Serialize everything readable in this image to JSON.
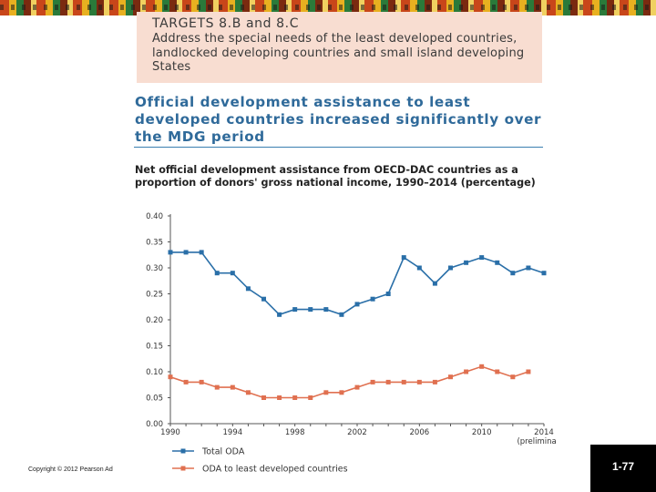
{
  "target": {
    "title": "TARGETS 8.B and 8.C",
    "text": "Address the special needs of the least developed countries, landlocked developing countries and small island developing States"
  },
  "headline": "Official development assistance to least developed countries increased significantly over the MDG period",
  "footer": {
    "copyright": "Copyright © 2012 Pearson Ad",
    "page_number": "1-77"
  },
  "chart_data": {
    "type": "line",
    "title": "Net official development assistance from OECD-DAC countries as a proportion of donors' gross national income, 1990–2014 (percentage)",
    "x": [
      1990,
      1991,
      1992,
      1993,
      1994,
      1995,
      1996,
      1997,
      1998,
      1999,
      2000,
      2001,
      2002,
      2003,
      2004,
      2005,
      2006,
      2007,
      2008,
      2009,
      2010,
      2011,
      2012,
      2013,
      2014
    ],
    "x_ticks": [
      1990,
      1994,
      1998,
      2002,
      2006,
      2010,
      2014
    ],
    "x_tick_note": "(preliminary)",
    "ylim": [
      0,
      0.4
    ],
    "y_ticks": [
      "0.00",
      "0.05",
      "0.10",
      "0.15",
      "0.20",
      "0.25",
      "0.30",
      "0.35",
      "0.40"
    ],
    "series": [
      {
        "name": "Total ODA",
        "color": "#2a6fa8",
        "values": [
          0.33,
          0.33,
          0.33,
          0.29,
          0.29,
          0.26,
          0.24,
          0.21,
          0.22,
          0.22,
          0.22,
          0.21,
          0.23,
          0.24,
          0.25,
          0.32,
          0.3,
          0.27,
          0.3,
          0.31,
          0.32,
          0.31,
          0.29,
          0.3,
          0.29
        ]
      },
      {
        "name": "ODA to least developed countries",
        "color": "#e07050",
        "values": [
          0.09,
          0.08,
          0.08,
          0.07,
          0.07,
          0.06,
          0.05,
          0.05,
          0.05,
          0.05,
          0.06,
          0.06,
          0.07,
          0.08,
          0.08,
          0.08,
          0.08,
          0.08,
          0.09,
          0.1,
          0.11,
          0.1,
          0.09,
          0.1,
          null
        ]
      }
    ]
  }
}
